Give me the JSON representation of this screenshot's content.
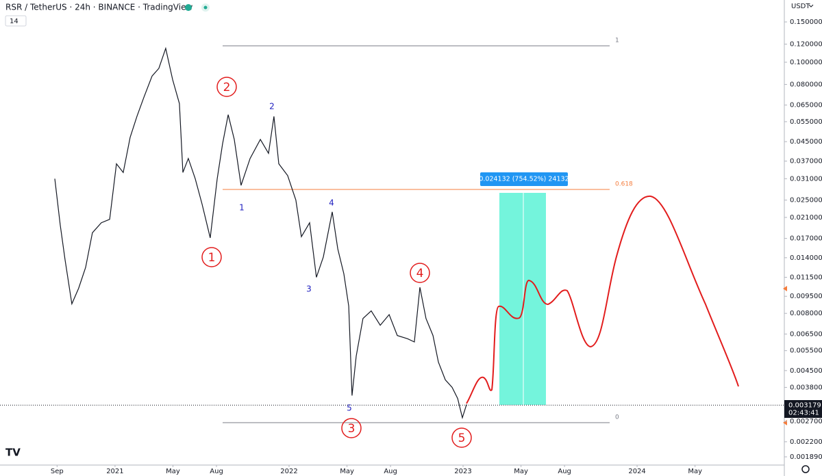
{
  "header": {
    "title": "RSR / TetherUS · 24h · BINANCE · TradingView",
    "indicator": "14",
    "currency": "USDT"
  },
  "chart_data": {
    "type": "line",
    "log_scale": true,
    "color": "#131722",
    "x": [
      2020.654,
      2020.685,
      2020.713,
      2020.752,
      2020.791,
      2020.831,
      2020.87,
      2020.921,
      2020.969,
      2021.008,
      2021.047,
      2021.087,
      2021.126,
      2021.165,
      2021.213,
      2021.252,
      2021.291,
      2021.331,
      2021.37,
      2021.39,
      2021.421,
      2021.461,
      2021.5,
      2021.547,
      2021.587,
      2021.618,
      2021.65,
      2021.685,
      2021.724,
      2021.776,
      2021.835,
      2021.882,
      2021.913,
      2021.941,
      2021.992,
      2022.039,
      2022.071,
      2022.118,
      2022.157,
      2022.197,
      2022.248,
      2022.28,
      2022.315,
      2022.343,
      2022.362,
      2022.386,
      2022.425,
      2022.472,
      2022.524,
      2022.575,
      2022.622,
      2022.681,
      2022.72,
      2022.752,
      2022.787,
      2022.827,
      2022.858,
      2022.898,
      2022.937,
      2022.969,
      2022.996,
      2023.02
    ],
    "values": [
      0.031,
      0.0195,
      0.0137,
      0.0088,
      0.0103,
      0.0127,
      0.018,
      0.0199,
      0.0206,
      0.036,
      0.033,
      0.047,
      0.058,
      0.07,
      0.087,
      0.094,
      0.115,
      0.084,
      0.066,
      0.033,
      0.038,
      0.031,
      0.024,
      0.0171,
      0.031,
      0.044,
      0.059,
      0.046,
      0.029,
      0.038,
      0.046,
      0.04,
      0.058,
      0.036,
      0.032,
      0.025,
      0.0173,
      0.0199,
      0.0115,
      0.0141,
      0.0222,
      0.0153,
      0.0119,
      0.0086,
      0.0035,
      0.0052,
      0.0076,
      0.0082,
      0.0071,
      0.0079,
      0.0064,
      0.0062,
      0.006,
      0.0104,
      0.0076,
      0.0064,
      0.0049,
      0.0041,
      0.0038,
      0.0034,
      0.0028,
      0.0032
    ],
    "ylim": [
      0.00174,
      0.187
    ],
    "yticks": [
      {
        "value": 0.15,
        "label": "0.150000"
      },
      {
        "value": 0.12,
        "label": "0.120000"
      },
      {
        "value": 0.1,
        "label": "0.100000"
      },
      {
        "value": 0.08,
        "label": "0.080000"
      },
      {
        "value": 0.065,
        "label": "0.065000"
      },
      {
        "value": 0.055,
        "label": "0.055000"
      },
      {
        "value": 0.045,
        "label": "0.045000"
      },
      {
        "value": 0.037,
        "label": "0.037000"
      },
      {
        "value": 0.031,
        "label": "0.031000"
      },
      {
        "value": 0.025,
        "label": "0.025000"
      },
      {
        "value": 0.021,
        "label": "0.021000"
      },
      {
        "value": 0.017,
        "label": "0.017000"
      },
      {
        "value": 0.014,
        "label": "0.014000"
      },
      {
        "value": 0.0115,
        "label": "0.011500"
      },
      {
        "value": 0.0095,
        "label": "0.009500"
      },
      {
        "value": 0.008,
        "label": "0.008000"
      },
      {
        "value": 0.0065,
        "label": "0.006500"
      },
      {
        "value": 0.0055,
        "label": "0.005500"
      },
      {
        "value": 0.0045,
        "label": "0.004500"
      },
      {
        "value": 0.0038,
        "label": "0.003800"
      },
      {
        "value": 0.0027,
        "label": "0.002700"
      },
      {
        "value": 0.0022,
        "label": "0.002200"
      },
      {
        "value": 0.00189,
        "label": "0.001890"
      }
    ],
    "xlim": [
      2020.339,
      2024.846
    ],
    "xticks": [
      {
        "value": 2020.667,
        "label": "Sep"
      },
      2021,
      {
        "value": 2021.333,
        "label": "May"
      },
      {
        "value": 2021.583,
        "label": "Aug"
      },
      2022,
      {
        "value": 2022.333,
        "label": "May"
      },
      {
        "value": 2022.583,
        "label": "Aug"
      },
      2023,
      {
        "value": 2023.333,
        "label": "May"
      },
      {
        "value": 2023.583,
        "label": "Aug"
      },
      2024,
      {
        "value": 2024.333,
        "label": "May"
      }
    ],
    "last_price": 0.003179,
    "countdown": "02:43:41"
  },
  "annotations": {
    "waves_major": [
      "1",
      "2",
      "3",
      "4",
      "5"
    ],
    "waves_minor": [
      "1",
      "2",
      "3",
      "4",
      "5"
    ],
    "fib_levels": [
      "1",
      "0.618",
      "0"
    ],
    "measure": "0.024132 (754.52%) 24132"
  }
}
